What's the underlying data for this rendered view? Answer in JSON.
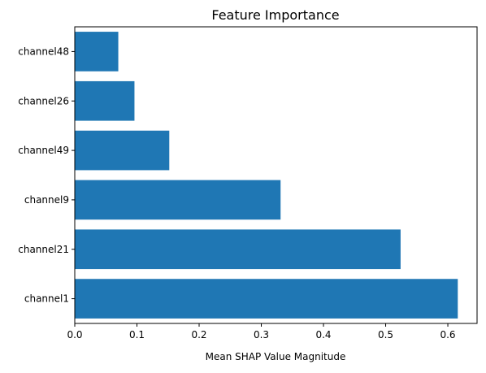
{
  "chart_data": {
    "type": "bar",
    "orientation": "horizontal",
    "title": "Feature Importance",
    "xlabel": "Mean SHAP Value Magnitude",
    "ylabel": "",
    "categories": [
      "channel1",
      "channel21",
      "channel9",
      "channel49",
      "channel26",
      "channel48"
    ],
    "values": [
      0.616,
      0.524,
      0.331,
      0.152,
      0.096,
      0.07
    ],
    "xlim": [
      0,
      0.647
    ],
    "xticks": [
      0.0,
      0.1,
      0.2,
      0.3,
      0.4,
      0.5,
      0.6
    ],
    "xtick_labels": [
      "0.0",
      "0.1",
      "0.2",
      "0.3",
      "0.4",
      "0.5",
      "0.6"
    ],
    "grid": false,
    "bar_color": "#1f77b4"
  }
}
